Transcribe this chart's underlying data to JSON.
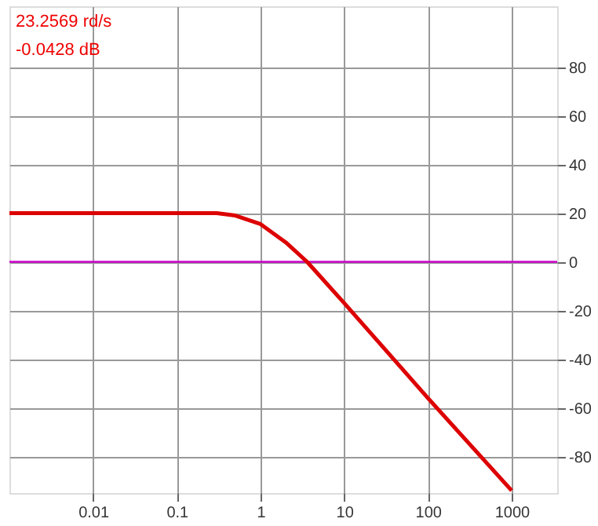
{
  "chart_data": {
    "type": "line",
    "log": "x",
    "x": [
      0.001,
      0.1,
      0.3,
      0.5,
      1,
      2,
      3.6,
      10,
      100,
      1000
    ],
    "series": [
      {
        "color": "#dd0000",
        "values": [
          20,
          20,
          20,
          19,
          15.5,
          8,
          0,
          -17,
          -56,
          -94
        ]
      }
    ],
    "xlim": [
      0.001,
      3500
    ],
    "xticks": [
      0.01,
      0.1,
      1,
      10,
      100,
      1000
    ],
    "ylim": [
      -95,
      105
    ],
    "yticks": [
      -80,
      -60,
      -40,
      -20,
      0,
      20,
      40,
      60,
      80
    ],
    "grid": true,
    "line_style": "solid",
    "ref_lines": [
      {
        "axis": "y",
        "value": 0,
        "color": "#cc00cc"
      }
    ],
    "annotations": [
      "23.2569 rd/s",
      "-0.0428 dB"
    ]
  }
}
